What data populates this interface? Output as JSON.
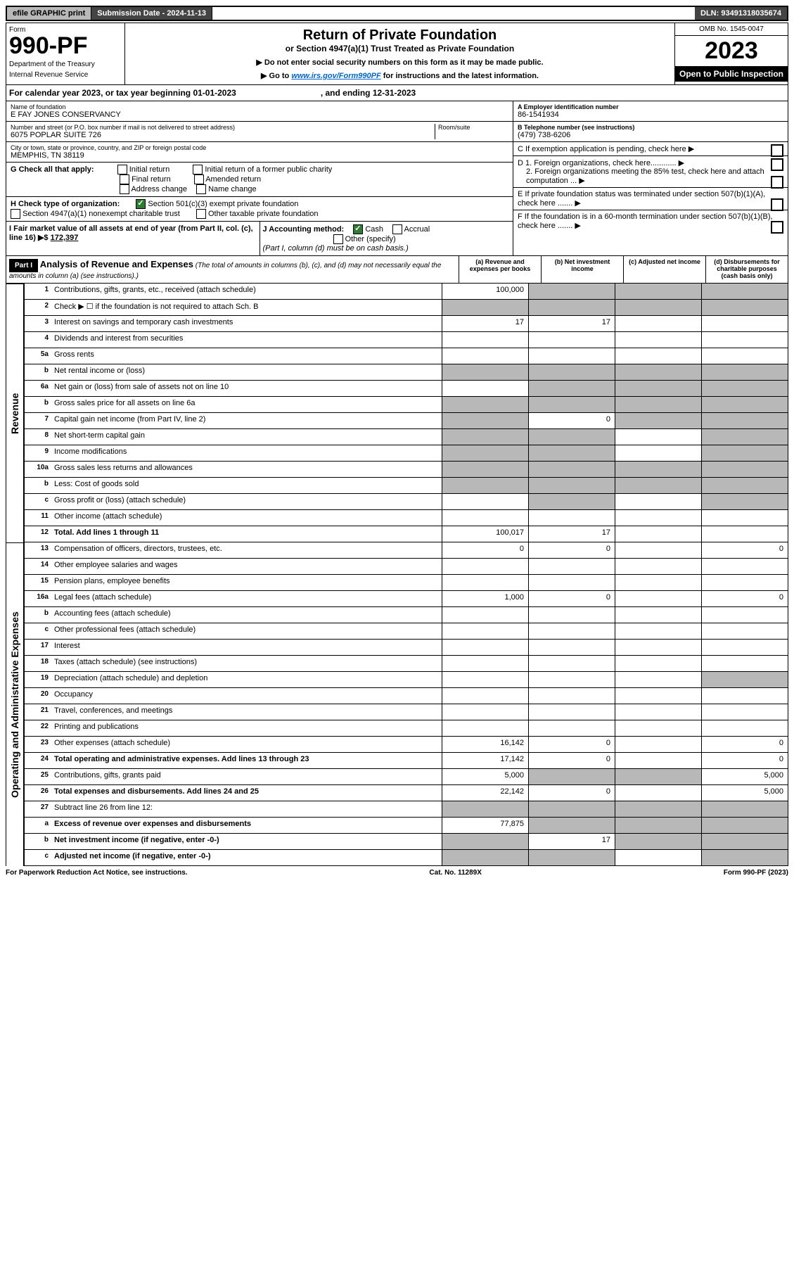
{
  "top": {
    "efile": "efile GRAPHIC print",
    "sub_label": "Submission Date - 2024-11-13",
    "dln": "DLN: 93491318035674"
  },
  "header": {
    "form": "Form",
    "num": "990-PF",
    "dept": "Department of the Treasury",
    "irs": "Internal Revenue Service",
    "title": "Return of Private Foundation",
    "subtitle": "or Section 4947(a)(1) Trust Treated as Private Foundation",
    "instr1": "▶ Do not enter social security numbers on this form as it may be made public.",
    "instr2_pre": "▶ Go to ",
    "instr2_link": "www.irs.gov/Form990PF",
    "instr2_post": " for instructions and the latest information.",
    "omb": "OMB No. 1545-0047",
    "year": "2023",
    "inspect": "Open to Public Inspection"
  },
  "cal": {
    "text": "For calendar year 2023, or tax year beginning 01-01-2023",
    "end": ", and ending 12-31-2023"
  },
  "org": {
    "name_label": "Name of foundation",
    "name": "E FAY JONES CONSERVANCY",
    "addr_label": "Number and street (or P.O. box number if mail is not delivered to street address)",
    "addr": "6075 POPLAR SUITE 726",
    "room": "Room/suite",
    "city_label": "City or town, state or province, country, and ZIP or foreign postal code",
    "city": "MEMPHIS, TN  38119",
    "ein_label": "A Employer identification number",
    "ein": "86-1541934",
    "tel_label": "B Telephone number (see instructions)",
    "tel": "(479) 738-6206",
    "c": "C If exemption application is pending, check here",
    "d1": "D 1. Foreign organizations, check here............",
    "d2": "2. Foreign organizations meeting the 85% test, check here and attach computation ...",
    "e": "E  If private foundation status was terminated under section 507(b)(1)(A), check here .......",
    "f": "F  If the foundation is in a 60-month termination under section 507(b)(1)(B), check here ......."
  },
  "g": {
    "label": "G Check all that apply:",
    "o1": "Initial return",
    "o2": "Final return",
    "o3": "Address change",
    "o4": "Initial return of a former public charity",
    "o5": "Amended return",
    "o6": "Name change"
  },
  "h": {
    "label": "H Check type of organization:",
    "o1": "Section 501(c)(3) exempt private foundation",
    "o2": "Section 4947(a)(1) nonexempt charitable trust",
    "o3": "Other taxable private foundation"
  },
  "i": {
    "label": "I Fair market value of all assets at end of year (from Part II, col. (c), line 16) ▶$",
    "val": "172,397"
  },
  "j": {
    "label": "J Accounting method:",
    "o1": "Cash",
    "o2": "Accrual",
    "o3": "Other (specify)",
    "note": "(Part I, column (d) must be on cash basis.)"
  },
  "part1": {
    "title": "Part I",
    "desc": "Analysis of Revenue and Expenses",
    "note": "(The total of amounts in columns (b), (c), and (d) may not necessarily equal the amounts in column (a) (see instructions).)",
    "ca": "(a) Revenue and expenses per books",
    "cb": "(b) Net investment income",
    "cc": "(c) Adjusted net income",
    "cd": "(d) Disbursements for charitable purposes (cash basis only)"
  },
  "rev_label": "Revenue",
  "exp_label": "Operating and Administrative Expenses",
  "rows": [
    {
      "n": "1",
      "d": "Contributions, gifts, grants, etc., received (attach schedule)",
      "a": "100,000",
      "g": [
        "b",
        "c",
        "d"
      ]
    },
    {
      "n": "2",
      "d": "Check ▶ ☐ if the foundation is not required to attach Sch. B",
      "g": [
        "a",
        "b",
        "c",
        "d"
      ]
    },
    {
      "n": "3",
      "d": "Interest on savings and temporary cash investments",
      "a": "17",
      "b": "17"
    },
    {
      "n": "4",
      "d": "Dividends and interest from securities"
    },
    {
      "n": "5a",
      "d": "Gross rents"
    },
    {
      "n": "b",
      "d": "Net rental income or (loss)",
      "g": [
        "a",
        "b",
        "c",
        "d"
      ]
    },
    {
      "n": "6a",
      "d": "Net gain or (loss) from sale of assets not on line 10",
      "g": [
        "b",
        "c",
        "d"
      ]
    },
    {
      "n": "b",
      "d": "Gross sales price for all assets on line 6a",
      "g": [
        "a",
        "b",
        "c",
        "d"
      ]
    },
    {
      "n": "7",
      "d": "Capital gain net income (from Part IV, line 2)",
      "b": "0",
      "g": [
        "a",
        "c",
        "d"
      ]
    },
    {
      "n": "8",
      "d": "Net short-term capital gain",
      "g": [
        "a",
        "b",
        "d"
      ]
    },
    {
      "n": "9",
      "d": "Income modifications",
      "g": [
        "a",
        "b",
        "d"
      ]
    },
    {
      "n": "10a",
      "d": "Gross sales less returns and allowances",
      "g": [
        "a",
        "b",
        "c",
        "d"
      ]
    },
    {
      "n": "b",
      "d": "Less: Cost of goods sold",
      "g": [
        "a",
        "b",
        "c",
        "d"
      ]
    },
    {
      "n": "c",
      "d": "Gross profit or (loss) (attach schedule)",
      "g": [
        "b",
        "d"
      ]
    },
    {
      "n": "11",
      "d": "Other income (attach schedule)"
    },
    {
      "n": "12",
      "d": "Total. Add lines 1 through 11",
      "bold": true,
      "a": "100,017",
      "b": "17"
    }
  ],
  "exp_rows": [
    {
      "n": "13",
      "d": "Compensation of officers, directors, trustees, etc.",
      "a": "0",
      "b": "0",
      "dd": "0"
    },
    {
      "n": "14",
      "d": "Other employee salaries and wages"
    },
    {
      "n": "15",
      "d": "Pension plans, employee benefits"
    },
    {
      "n": "16a",
      "d": "Legal fees (attach schedule)",
      "a": "1,000",
      "b": "0",
      "dd": "0"
    },
    {
      "n": "b",
      "d": "Accounting fees (attach schedule)"
    },
    {
      "n": "c",
      "d": "Other professional fees (attach schedule)"
    },
    {
      "n": "17",
      "d": "Interest"
    },
    {
      "n": "18",
      "d": "Taxes (attach schedule) (see instructions)"
    },
    {
      "n": "19",
      "d": "Depreciation (attach schedule) and depletion",
      "g": [
        "d"
      ]
    },
    {
      "n": "20",
      "d": "Occupancy"
    },
    {
      "n": "21",
      "d": "Travel, conferences, and meetings"
    },
    {
      "n": "22",
      "d": "Printing and publications"
    },
    {
      "n": "23",
      "d": "Other expenses (attach schedule)",
      "a": "16,142",
      "b": "0",
      "dd": "0"
    },
    {
      "n": "24",
      "d": "Total operating and administrative expenses. Add lines 13 through 23",
      "bold": true,
      "a": "17,142",
      "b": "0",
      "dd": "0"
    },
    {
      "n": "25",
      "d": "Contributions, gifts, grants paid",
      "a": "5,000",
      "g": [
        "b",
        "c"
      ],
      "dd": "5,000"
    },
    {
      "n": "26",
      "d": "Total expenses and disbursements. Add lines 24 and 25",
      "bold": true,
      "a": "22,142",
      "b": "0",
      "dd": "5,000"
    },
    {
      "n": "27",
      "d": "Subtract line 26 from line 12:",
      "g": [
        "a",
        "b",
        "c",
        "d"
      ]
    },
    {
      "n": "a",
      "d": "Excess of revenue over expenses and disbursements",
      "bold": true,
      "a": "77,875",
      "g": [
        "b",
        "c",
        "d"
      ]
    },
    {
      "n": "b",
      "d": "Net investment income (if negative, enter -0-)",
      "bold": true,
      "b": "17",
      "g": [
        "a",
        "c",
        "d"
      ]
    },
    {
      "n": "c",
      "d": "Adjusted net income (if negative, enter -0-)",
      "bold": true,
      "g": [
        "a",
        "b",
        "d"
      ]
    }
  ],
  "footer": {
    "l": "For Paperwork Reduction Act Notice, see instructions.",
    "m": "Cat. No. 11289X",
    "r": "Form 990-PF (2023)"
  }
}
